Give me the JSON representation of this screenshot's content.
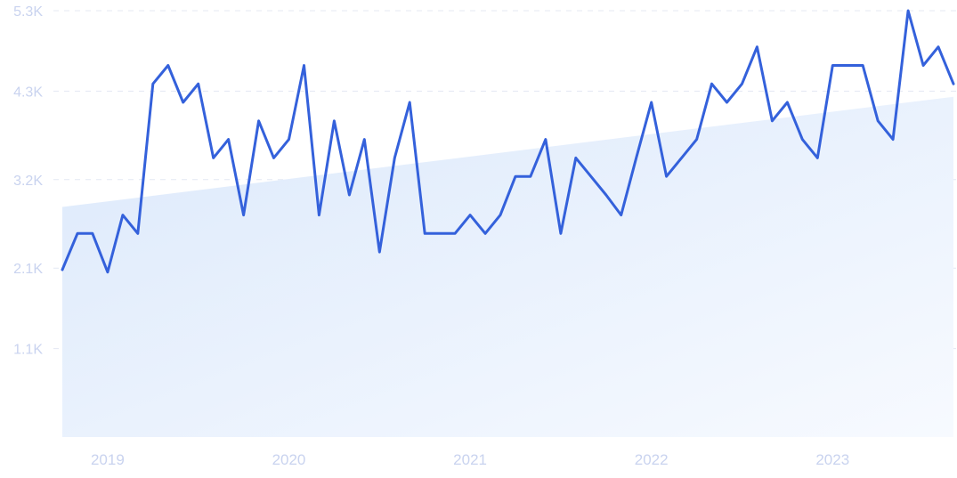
{
  "chart_data": {
    "type": "line",
    "title": "",
    "xlabel": "",
    "ylabel": "",
    "ylim": [
      0,
      5300
    ],
    "y_ticks": [
      {
        "value": 1100,
        "label": "1.1K"
      },
      {
        "value": 2100,
        "label": "2.1K"
      },
      {
        "value": 3200,
        "label": "3.2K"
      },
      {
        "value": 4300,
        "label": "4.3K"
      },
      {
        "value": 5300,
        "label": "5.3K"
      }
    ],
    "x_ticks": [
      {
        "value": "2019-01",
        "label": "2019"
      },
      {
        "value": "2020-01",
        "label": "2020"
      },
      {
        "value": "2021-01",
        "label": "2021"
      },
      {
        "value": "2022-01",
        "label": "2022"
      },
      {
        "value": "2023-01",
        "label": "2023"
      }
    ],
    "grid": true,
    "legend": "none",
    "line_color": "#3461db",
    "trend_fill_color": "#dce9fb",
    "series": [
      {
        "x": [
          "2018-10",
          "2018-11",
          "2018-12",
          "2019-01",
          "2019-02",
          "2019-03",
          "2019-04",
          "2019-05",
          "2019-06",
          "2019-07",
          "2019-08",
          "2019-09",
          "2019-10",
          "2019-11",
          "2019-12",
          "2020-01",
          "2020-02",
          "2020-03",
          "2020-04",
          "2020-05",
          "2020-06",
          "2020-07",
          "2020-08",
          "2020-09",
          "2020-10",
          "2020-11",
          "2020-12",
          "2021-01",
          "2021-02",
          "2021-03",
          "2021-04",
          "2021-05",
          "2021-06",
          "2021-07",
          "2021-08",
          "2021-09",
          "2021-10",
          "2021-11",
          "2021-12",
          "2022-01",
          "2022-02",
          "2022-03",
          "2022-04",
          "2022-05",
          "2022-06",
          "2022-07",
          "2022-08",
          "2022-09",
          "2022-10",
          "2022-11",
          "2022-12",
          "2023-01",
          "2023-02",
          "2023-03",
          "2023-04",
          "2023-05",
          "2023-06",
          "2023-07",
          "2023-08",
          "2023-09"
        ],
        "values": [
          2080,
          2530,
          2530,
          2050,
          2760,
          2530,
          4390,
          4620,
          4160,
          4390,
          3470,
          3700,
          2760,
          3930,
          3470,
          3700,
          4620,
          2760,
          3930,
          3010,
          3700,
          2300,
          3470,
          4160,
          2530,
          2530,
          2530,
          2760,
          2530,
          2760,
          3240,
          3240,
          3700,
          2530,
          3470,
          3240,
          3010,
          2760,
          3470,
          4160,
          3240,
          3470,
          3700,
          4390,
          4160,
          4390,
          4850,
          3930,
          4160,
          3700,
          3470,
          4620,
          4620,
          4620,
          3930,
          3700,
          5300,
          4620,
          4850,
          4390
        ]
      }
    ],
    "trend": {
      "x": [
        "2018-10",
        "2023-09"
      ],
      "values": [
        2860,
        4230
      ]
    }
  }
}
